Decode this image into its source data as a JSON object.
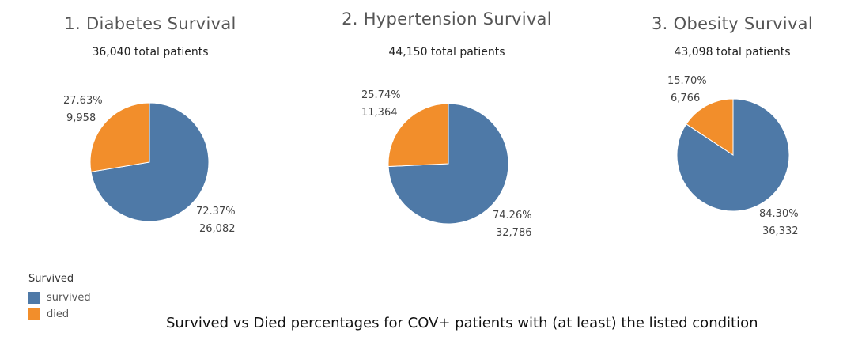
{
  "colors": {
    "survived": "#4e79a7",
    "died": "#f28e2b"
  },
  "legend": {
    "title": "Survived",
    "items": [
      {
        "key": "survived",
        "label": "survived"
      },
      {
        "key": "died",
        "label": "died"
      }
    ]
  },
  "caption": "Survived vs Died percentages for COV+ patients with (at least) the listed condition",
  "chart_data": [
    {
      "type": "pie",
      "title": "1. Diabetes Survival",
      "subtitle": "36,040 total patients",
      "slices": [
        {
          "key": "survived",
          "name": "survived",
          "value": 26082,
          "percent": 72.37,
          "pct_label": "72.37%",
          "count_label": "26,082"
        },
        {
          "key": "died",
          "name": "died",
          "value": 9958,
          "percent": 27.63,
          "pct_label": "27.63%",
          "count_label": "9,958"
        }
      ]
    },
    {
      "type": "pie",
      "title": "2. Hypertension Survival",
      "subtitle": "44,150 total patients",
      "slices": [
        {
          "key": "survived",
          "name": "survived",
          "value": 32786,
          "percent": 74.26,
          "pct_label": "74.26%",
          "count_label": "32,786"
        },
        {
          "key": "died",
          "name": "died",
          "value": 11364,
          "percent": 25.74,
          "pct_label": "25.74%",
          "count_label": "11,364"
        }
      ]
    },
    {
      "type": "pie",
      "title": "3. Obesity Survival",
      "subtitle": "43,098 total patients",
      "slices": [
        {
          "key": "survived",
          "name": "survived",
          "value": 36332,
          "percent": 84.3,
          "pct_label": "84.30%",
          "count_label": "36,332"
        },
        {
          "key": "died",
          "name": "died",
          "value": 6766,
          "percent": 15.7,
          "pct_label": "15.70%",
          "count_label": "6,766"
        }
      ]
    }
  ]
}
